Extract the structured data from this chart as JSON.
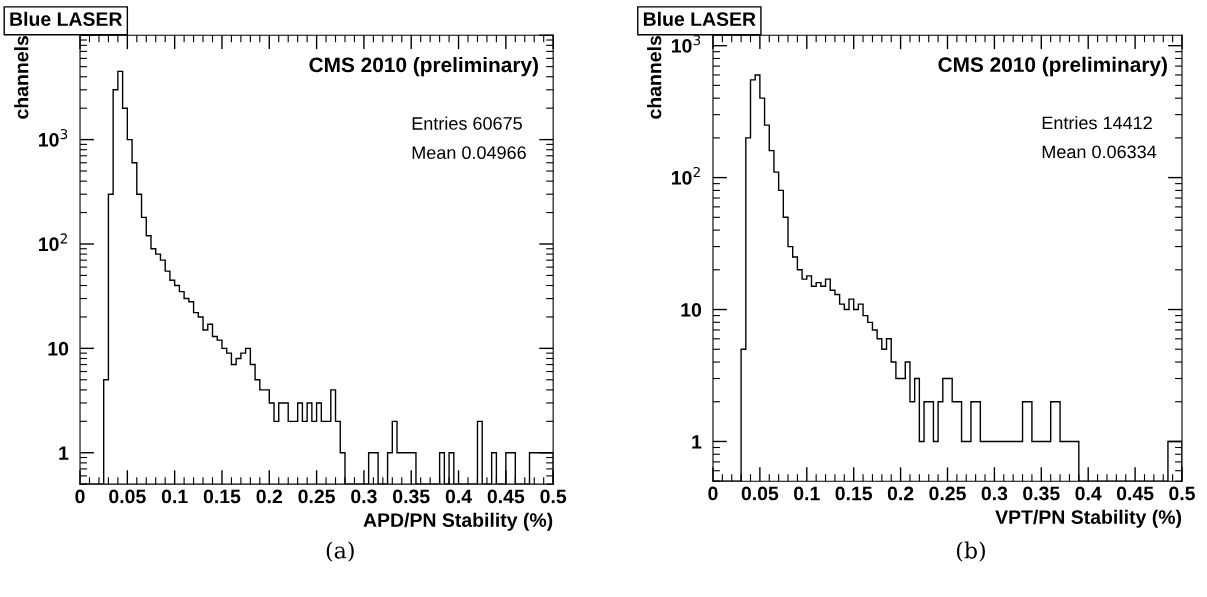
{
  "chart_data": [
    {
      "type": "histogram",
      "title": "Blue LASER",
      "xlabel": "APD/PN Stability (%)",
      "ylabel": "channels",
      "log": "y",
      "color": "#000000",
      "annotations": [
        "CMS 2010 (preliminary)",
        "Entries 60675",
        "Mean 0.04966",
        "(a)"
      ],
      "xlim": [
        0,
        0.5
      ],
      "xticks": [
        0,
        0.05,
        0.1,
        0.15,
        0.2,
        0.25,
        0.3,
        0.35,
        0.4,
        0.45,
        0.5
      ],
      "ylim": [
        0.5,
        10000
      ],
      "yticks": [
        1,
        10,
        {
          "value": 100,
          "label": "10$^{2}$"
        },
        {
          "value": 1000,
          "label": "10$^{3}$"
        },
        {
          "value": 10000,
          "label": null
        }
      ],
      "bins": [
        0,
        0.005,
        0.01,
        0.015,
        0.02,
        0.025,
        0.03,
        0.035,
        0.04,
        0.045,
        0.05,
        0.055,
        0.06,
        0.065,
        0.07,
        0.075,
        0.08,
        0.085,
        0.09,
        0.095,
        0.1,
        0.105,
        0.11,
        0.115,
        0.12,
        0.125,
        0.13,
        0.135,
        0.14,
        0.145,
        0.15,
        0.155,
        0.16,
        0.165,
        0.17,
        0.175,
        0.18,
        0.185,
        0.19,
        0.195,
        0.2,
        0.205,
        0.21,
        0.215,
        0.22,
        0.225,
        0.23,
        0.235,
        0.24,
        0.245,
        0.25,
        0.255,
        0.26,
        0.265,
        0.27,
        0.275,
        0.28,
        0.285,
        0.29,
        0.295,
        0.3,
        0.305,
        0.31,
        0.315,
        0.32,
        0.325,
        0.33,
        0.335,
        0.34,
        0.345,
        0.35,
        0.355,
        0.36,
        0.365,
        0.37,
        0.375,
        0.38,
        0.385,
        0.39,
        0.395,
        0.4,
        0.405,
        0.41,
        0.415,
        0.42,
        0.425,
        0.43,
        0.435,
        0.44,
        0.445,
        0.45,
        0.455,
        0.46,
        0.465,
        0.47,
        0.475,
        0.48,
        0.485,
        0.49,
        0.495,
        0.5
      ],
      "values": [
        null,
        null,
        null,
        null,
        null,
        5,
        300,
        3000,
        4500,
        2000,
        1000,
        600,
        300,
        180,
        120,
        90,
        80,
        70,
        55,
        45,
        40,
        35,
        30,
        28,
        22,
        20,
        15,
        17,
        13,
        12,
        10,
        9,
        7,
        8,
        9,
        10,
        7,
        5,
        4,
        4,
        3,
        2,
        3,
        3,
        2,
        2,
        3,
        2,
        3,
        2,
        3,
        2,
        2,
        4,
        2,
        1,
        null,
        null,
        null,
        null,
        null,
        1,
        1,
        null,
        null,
        1,
        2,
        1,
        1,
        1,
        1,
        null,
        null,
        null,
        null,
        null,
        1,
        null,
        1,
        null,
        null,
        null,
        null,
        null,
        2,
        null,
        null,
        1,
        null,
        null,
        1,
        1,
        null,
        null,
        null,
        1,
        1,
        1,
        1,
        1
      ]
    },
    {
      "type": "histogram",
      "title": "Blue LASER",
      "xlabel": "VPT/PN Stability (%)",
      "ylabel": "channels",
      "log": "y",
      "color": "#000000",
      "annotations": [
        "CMS 2010 (preliminary)",
        "Entries 14412",
        "Mean 0.06334",
        "(b)"
      ],
      "xlim": [
        0,
        0.5
      ],
      "xticks": [
        0,
        0.05,
        0.1,
        0.15,
        0.2,
        0.25,
        0.3,
        0.35,
        0.4,
        0.45,
        0.5
      ],
      "ylim": [
        0.5,
        1200
      ],
      "yticks": [
        1,
        10,
        {
          "value": 100,
          "label": "10$^{2}$"
        },
        {
          "value": 1000,
          "label": "10$^{3}$"
        }
      ],
      "bins": [
        0,
        0.005,
        0.01,
        0.015,
        0.02,
        0.025,
        0.03,
        0.035,
        0.04,
        0.045,
        0.05,
        0.055,
        0.06,
        0.065,
        0.07,
        0.075,
        0.08,
        0.085,
        0.09,
        0.095,
        0.1,
        0.105,
        0.11,
        0.115,
        0.12,
        0.125,
        0.13,
        0.135,
        0.14,
        0.145,
        0.15,
        0.155,
        0.16,
        0.165,
        0.17,
        0.175,
        0.18,
        0.185,
        0.19,
        0.195,
        0.2,
        0.205,
        0.21,
        0.215,
        0.22,
        0.225,
        0.23,
        0.235,
        0.24,
        0.245,
        0.25,
        0.255,
        0.26,
        0.265,
        0.27,
        0.275,
        0.28,
        0.285,
        0.29,
        0.295,
        0.3,
        0.305,
        0.31,
        0.315,
        0.32,
        0.325,
        0.33,
        0.335,
        0.34,
        0.345,
        0.35,
        0.355,
        0.36,
        0.365,
        0.37,
        0.375,
        0.38,
        0.385,
        0.39,
        0.395,
        0.4,
        0.405,
        0.41,
        0.415,
        0.42,
        0.425,
        0.43,
        0.435,
        0.44,
        0.445,
        0.45,
        0.455,
        0.46,
        0.465,
        0.47,
        0.475,
        0.48,
        0.485,
        0.49,
        0.495,
        0.5
      ],
      "values": [
        null,
        null,
        null,
        null,
        null,
        null,
        5,
        200,
        550,
        600,
        400,
        250,
        160,
        110,
        80,
        50,
        30,
        25,
        20,
        17,
        18,
        15,
        16,
        15,
        17,
        14,
        13,
        11,
        10,
        12,
        10,
        11,
        9,
        8,
        7,
        6,
        5,
        6,
        4,
        3,
        3,
        4,
        2,
        3,
        1,
        2,
        2,
        1,
        2,
        3,
        3,
        2,
        2,
        1,
        1,
        2,
        2,
        1,
        1,
        1,
        1,
        1,
        1,
        1,
        1,
        1,
        2,
        2,
        1,
        1,
        1,
        1,
        2,
        2,
        1,
        1,
        1,
        1,
        null,
        null,
        null,
        null,
        null,
        null,
        null,
        null,
        null,
        null,
        null,
        null,
        null,
        null,
        null,
        null,
        null,
        null,
        null,
        1,
        1,
        1
      ]
    }
  ]
}
